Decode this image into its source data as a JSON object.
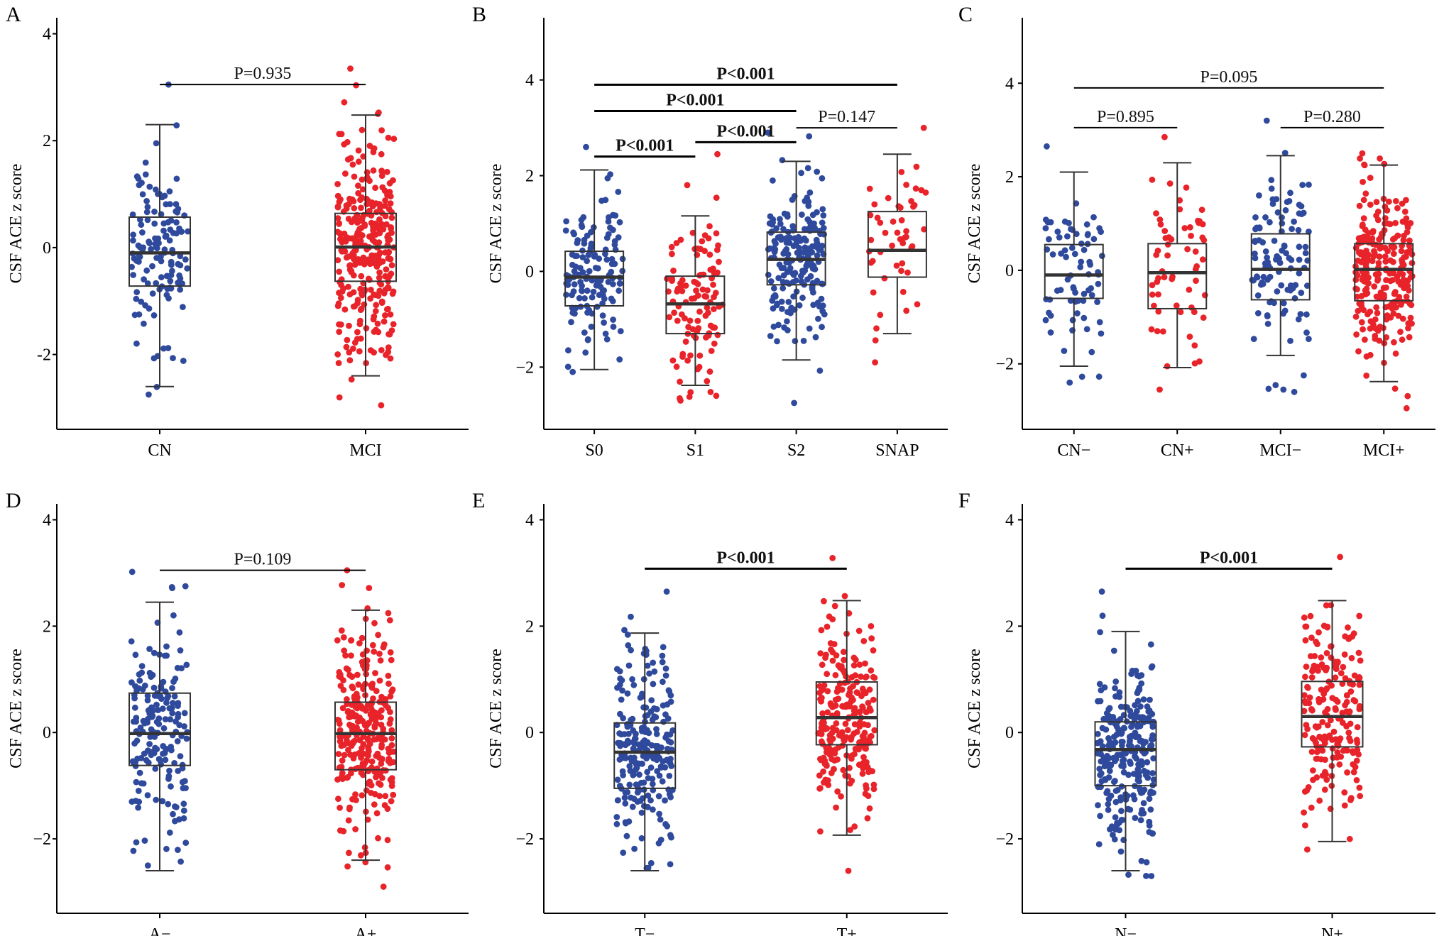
{
  "colors": {
    "blue": "#2f4a9c",
    "red": "#e8232a",
    "axis": "#000000",
    "box": "#333333"
  },
  "chart_data": [
    {
      "panel": "A",
      "type": "boxplot-jitter",
      "ylabel": "CSF ACE z score",
      "ylim": [
        -3.4,
        4.3
      ],
      "yticks": [
        {
          "v": 4,
          "label": "4"
        },
        {
          "v": 2,
          "label": "2"
        },
        {
          "v": 0,
          "label": "0"
        },
        {
          "v": -2,
          "label": "-2"
        }
      ],
      "groups": [
        {
          "label": "CN",
          "color": "blue",
          "n": 130,
          "q1": -0.72,
          "median": -0.1,
          "q3": 0.57,
          "wlo": -2.6,
          "whi": 2.3,
          "min": -2.75,
          "max": 3.05
        },
        {
          "label": "MCI",
          "color": "red",
          "n": 320,
          "q1": -0.63,
          "median": 0.01,
          "q3": 0.64,
          "wlo": -2.4,
          "whi": 2.48,
          "min": -2.95,
          "max": 3.35
        }
      ],
      "comparisons": [
        {
          "from": 0,
          "to": 1,
          "y": 3.05,
          "text": "P=0.935",
          "bold": false
        }
      ]
    },
    {
      "panel": "B",
      "type": "boxplot-jitter",
      "ylabel": "CSF ACE  z score",
      "ylim": [
        -3.3,
        5.3
      ],
      "yticks": [
        {
          "v": 4,
          "label": "4"
        },
        {
          "v": 2,
          "label": "2"
        },
        {
          "v": 0,
          "label": "0"
        },
        {
          "v": -2,
          "label": "−2"
        }
      ],
      "groups": [
        {
          "label": "S0",
          "color": "blue",
          "n": 140,
          "q1": -0.72,
          "median": -0.12,
          "q3": 0.42,
          "wlo": -2.05,
          "whi": 2.12,
          "min": -2.1,
          "max": 2.6
        },
        {
          "label": "S1",
          "color": "red",
          "n": 110,
          "q1": -1.3,
          "median": -0.68,
          "q3": -0.1,
          "wlo": -2.38,
          "whi": 1.16,
          "min": -2.7,
          "max": 2.45
        },
        {
          "label": "S2",
          "color": "blue",
          "n": 200,
          "q1": -0.28,
          "median": 0.25,
          "q3": 0.82,
          "wlo": -1.85,
          "whi": 2.3,
          "min": -2.75,
          "max": 2.9
        },
        {
          "label": "SNAP",
          "color": "red",
          "n": 50,
          "q1": -0.12,
          "median": 0.44,
          "q3": 1.25,
          "wlo": -1.3,
          "whi": 2.45,
          "min": -1.9,
          "max": 3.0
        }
      ],
      "comparisons": [
        {
          "from": 0,
          "to": 3,
          "y": 3.9,
          "text": "P<0.001",
          "bold": true
        },
        {
          "from": 0,
          "to": 2,
          "y": 3.35,
          "text": "P<0.001",
          "bold": true
        },
        {
          "from": 2,
          "to": 3,
          "y": 3.0,
          "text": "P=0.147",
          "bold": false
        },
        {
          "from": 1,
          "to": 2,
          "y": 2.7,
          "text": "P<0.001",
          "bold": true
        },
        {
          "from": 0,
          "to": 1,
          "y": 2.4,
          "text": "P<0.001",
          "bold": true
        }
      ]
    },
    {
      "panel": "C",
      "type": "boxplot-jitter",
      "ylabel": "CSF ACE z score",
      "ylim": [
        -3.4,
        5.4
      ],
      "yticks": [
        {
          "v": 4,
          "label": "4"
        },
        {
          "v": 2,
          "label": "2"
        },
        {
          "v": 0,
          "label": "0"
        },
        {
          "v": -2,
          "label": "−2"
        }
      ],
      "groups": [
        {
          "label": "CN−",
          "color": "blue",
          "n": 75,
          "q1": -0.6,
          "median": -0.1,
          "q3": 0.55,
          "wlo": -2.05,
          "whi": 2.1,
          "min": -2.4,
          "max": 2.65
        },
        {
          "label": "CN+",
          "color": "red",
          "n": 60,
          "q1": -0.82,
          "median": -0.05,
          "q3": 0.57,
          "wlo": -2.08,
          "whi": 2.3,
          "min": -2.55,
          "max": 2.85
        },
        {
          "label": "MCI−",
          "color": "blue",
          "n": 110,
          "q1": -0.63,
          "median": 0.02,
          "q3": 0.78,
          "wlo": -1.82,
          "whi": 2.45,
          "min": -2.6,
          "max": 3.2
        },
        {
          "label": "MCI+",
          "color": "red",
          "n": 250,
          "q1": -0.65,
          "median": 0.02,
          "q3": 0.57,
          "wlo": -2.38,
          "whi": 2.25,
          "min": -2.95,
          "max": 2.5
        }
      ],
      "comparisons": [
        {
          "from": 0,
          "to": 3,
          "y": 3.9,
          "text": "P=0.095",
          "bold": false
        },
        {
          "from": 0,
          "to": 1,
          "y": 3.05,
          "text": "P=0.895",
          "bold": false
        },
        {
          "from": 2,
          "to": 3,
          "y": 3.05,
          "text": "P=0.280",
          "bold": false
        }
      ]
    },
    {
      "panel": "D",
      "type": "boxplot-jitter",
      "ylabel": "CSF ACE z score",
      "ylim": [
        -3.4,
        4.3
      ],
      "yticks": [
        {
          "v": 4,
          "label": "4"
        },
        {
          "v": 2,
          "label": "2"
        },
        {
          "v": 0,
          "label": "0"
        },
        {
          "v": -2,
          "label": "−2"
        }
      ],
      "groups": [
        {
          "label": "A−",
          "color": "blue",
          "n": 180,
          "q1": -0.62,
          "median": -0.02,
          "q3": 0.74,
          "wlo": -2.6,
          "whi": 2.45,
          "min": -2.5,
          "max": 3.02
        },
        {
          "label": "A+",
          "color": "red",
          "n": 290,
          "q1": -0.7,
          "median": -0.02,
          "q3": 0.57,
          "wlo": -2.4,
          "whi": 2.3,
          "min": -2.9,
          "max": 3.05
        }
      ],
      "comparisons": [
        {
          "from": 0,
          "to": 1,
          "y": 3.05,
          "text": "P=0.109",
          "bold": false
        }
      ]
    },
    {
      "panel": "E",
      "type": "boxplot-jitter",
      "ylabel": "CSF ACE z score",
      "ylim": [
        -3.4,
        4.3
      ],
      "yticks": [
        {
          "v": 4,
          "label": "4"
        },
        {
          "v": 2,
          "label": "2"
        },
        {
          "v": 0,
          "label": "0"
        },
        {
          "v": -2,
          "label": "−2"
        }
      ],
      "groups": [
        {
          "label": "T−",
          "color": "blue",
          "n": 230,
          "q1": -1.05,
          "median": -0.37,
          "q3": 0.18,
          "wlo": -2.6,
          "whi": 1.87,
          "min": -2.55,
          "max": 2.65
        },
        {
          "label": "T+",
          "color": "red",
          "n": 240,
          "q1": -0.23,
          "median": 0.28,
          "q3": 0.95,
          "wlo": -1.93,
          "whi": 2.48,
          "min": -2.6,
          "max": 3.28
        }
      ],
      "comparisons": [
        {
          "from": 0,
          "to": 1,
          "y": 3.08,
          "text": "P<0.001",
          "bold": true
        }
      ]
    },
    {
      "panel": "F",
      "type": "boxplot-jitter",
      "ylabel": "CSF ACE z score",
      "ylim": [
        -3.4,
        4.3
      ],
      "yticks": [
        {
          "v": 4,
          "label": "4"
        },
        {
          "v": 2,
          "label": "2"
        },
        {
          "v": 0,
          "label": "0"
        },
        {
          "v": -2,
          "label": "−2"
        }
      ],
      "groups": [
        {
          "label": "N−",
          "color": "blue",
          "n": 270,
          "q1": -1.0,
          "median": -0.32,
          "q3": 0.2,
          "wlo": -2.6,
          "whi": 1.9,
          "min": -2.7,
          "max": 2.65
        },
        {
          "label": "N+",
          "color": "red",
          "n": 200,
          "q1": -0.27,
          "median": 0.3,
          "q3": 0.96,
          "wlo": -2.05,
          "whi": 2.48,
          "min": -2.2,
          "max": 3.3
        }
      ],
      "comparisons": [
        {
          "from": 0,
          "to": 1,
          "y": 3.08,
          "text": "P<0.001",
          "bold": true
        }
      ]
    }
  ]
}
